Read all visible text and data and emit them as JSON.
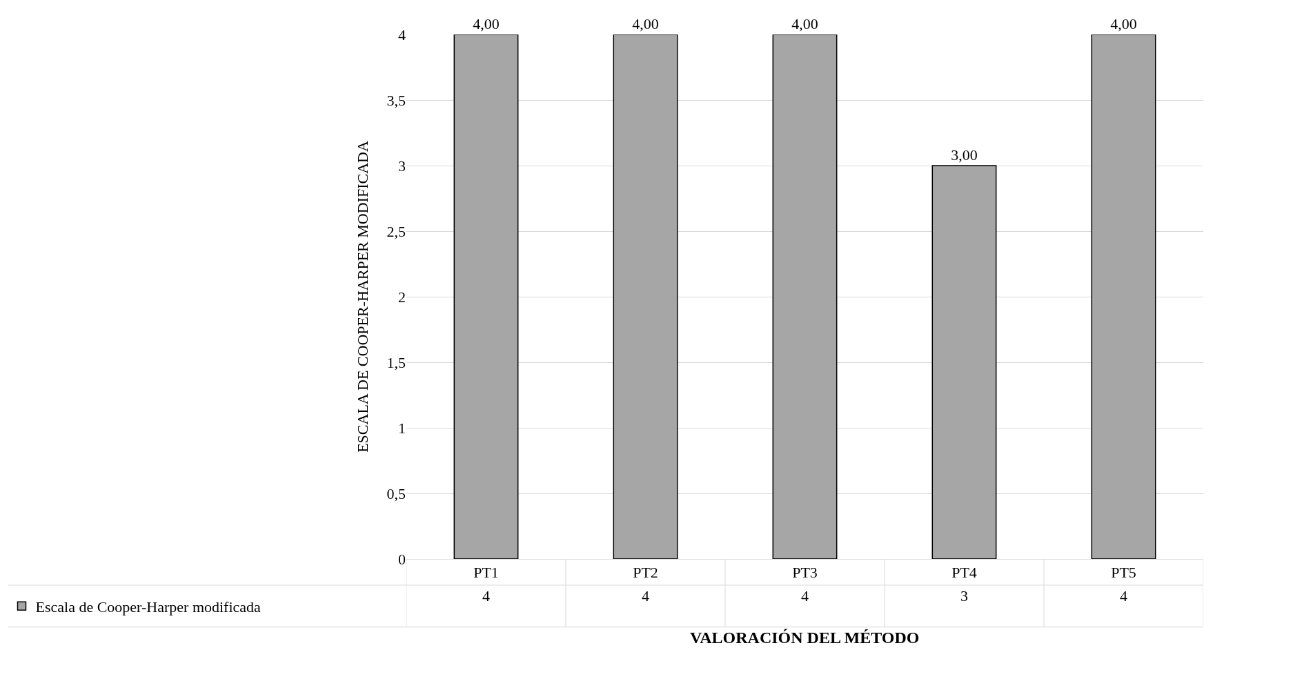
{
  "chart_data": {
    "type": "bar",
    "xlabel": "VALORACIÓN DEL MÉTODO",
    "ylabel": "ESCALA DE COOPER-HARPER MODIFICADA",
    "categories": [
      "PT1",
      "PT2",
      "PT3",
      "PT4",
      "PT5"
    ],
    "series": [
      {
        "name": "Escala de Cooper-Harper modificada",
        "color": "#a6a6a6",
        "values": [
          4,
          4,
          4,
          3,
          4
        ],
        "value_labels": [
          "4,00",
          "4,00",
          "4,00",
          "3,00",
          "4,00"
        ]
      }
    ],
    "annotations": [
      "4",
      "4",
      "4",
      "3",
      "4"
    ],
    "ylim": [
      0,
      4
    ],
    "yticks": [
      0,
      {
        "value": 0.5,
        "label": "0,5"
      },
      1,
      {
        "value": 1.5,
        "label": "1,5"
      },
      2,
      {
        "value": 2.5,
        "label": "2,5"
      },
      3,
      {
        "value": 3.5,
        "label": "3,5"
      },
      4
    ],
    "grid": "y",
    "legend": "bottom left"
  }
}
